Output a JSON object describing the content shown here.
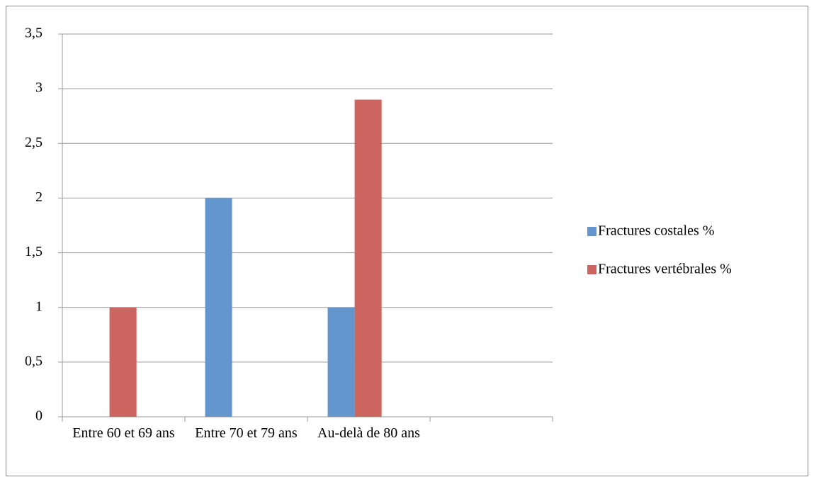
{
  "chart_data": {
    "type": "bar",
    "categories": [
      "Entre 60 et 69 ans",
      "Entre 70 et 79 ans",
      "Au-delà de 80 ans",
      null
    ],
    "series": [
      {
        "name": "Fractures costales %",
        "color": "#6396cc",
        "values": [
          0,
          2,
          1,
          null
        ]
      },
      {
        "name": "Fractures vertébrales %",
        "color": "#cc6560",
        "values": [
          1,
          0,
          2.9,
          null
        ]
      }
    ],
    "ylim": [
      0,
      3.5
    ],
    "yticks": [
      0,
      {
        "value": 0.5,
        "label": "0,5"
      },
      1,
      {
        "value": 1.5,
        "label": "1,5"
      },
      2,
      {
        "value": 2.5,
        "label": "2,5"
      },
      3,
      {
        "value": 3.5,
        "label": "3,5"
      }
    ],
    "grid": true,
    "legend": "right"
  }
}
